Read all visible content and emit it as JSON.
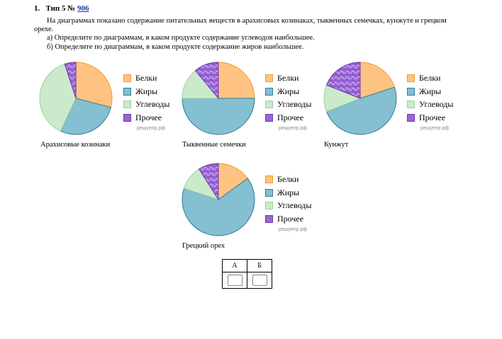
{
  "task": {
    "number": "1.",
    "type_prefix": "Тип 5 №",
    "id_link": "906",
    "intro_line1": "На диаграммах показано содержание питательных веществ в арахисовых козинаках, тыквенных семечках, кунжуте и грецком",
    "intro_line2": "орехе.",
    "q_a": "а)  Определите по диаграммам, в каком продукте содержание углеводов наибольшее.",
    "q_b": "б)  Определите по диаграммам, в каком продукте содержание жиров наибольшее."
  },
  "legend": {
    "protein": "Белки",
    "fat": "Жиры",
    "carbs": "Углеводы",
    "other": "Прочее"
  },
  "watermark": "решуепр.рф",
  "colors": {
    "protein": "#fec383",
    "protein_edge": "#f29b2c",
    "fat": "#85bfd2",
    "fat_edge": "#2e7c93",
    "carbs": "#cbeacb",
    "carbs_edge": "#9bcf9b",
    "other": "#9a66d6",
    "other_edge": "#6a3aa8"
  },
  "chart_data": [
    {
      "type": "pie",
      "title": "Арахисовые козинаки",
      "labels": [
        "Белки",
        "Жиры",
        "Углеводы",
        "Прочее"
      ],
      "values": [
        29,
        28,
        38,
        5
      ]
    },
    {
      "type": "pie",
      "title": "Тыквенные семечки",
      "labels": [
        "Белки",
        "Жиры",
        "Углеводы",
        "Прочее"
      ],
      "values": [
        25,
        50,
        14,
        11
      ]
    },
    {
      "type": "pie",
      "title": "Кунжут",
      "labels": [
        "Белки",
        "Жиры",
        "Углеводы",
        "Прочее"
      ],
      "values": [
        20,
        49,
        12,
        19
      ]
    },
    {
      "type": "pie",
      "title": "Грецкий орех",
      "labels": [
        "Белки",
        "Жиры",
        "Углеводы",
        "Прочее"
      ],
      "values": [
        15,
        65,
        11,
        9
      ]
    }
  ],
  "answer_table": {
    "col_a": "А",
    "col_b": "Б"
  }
}
